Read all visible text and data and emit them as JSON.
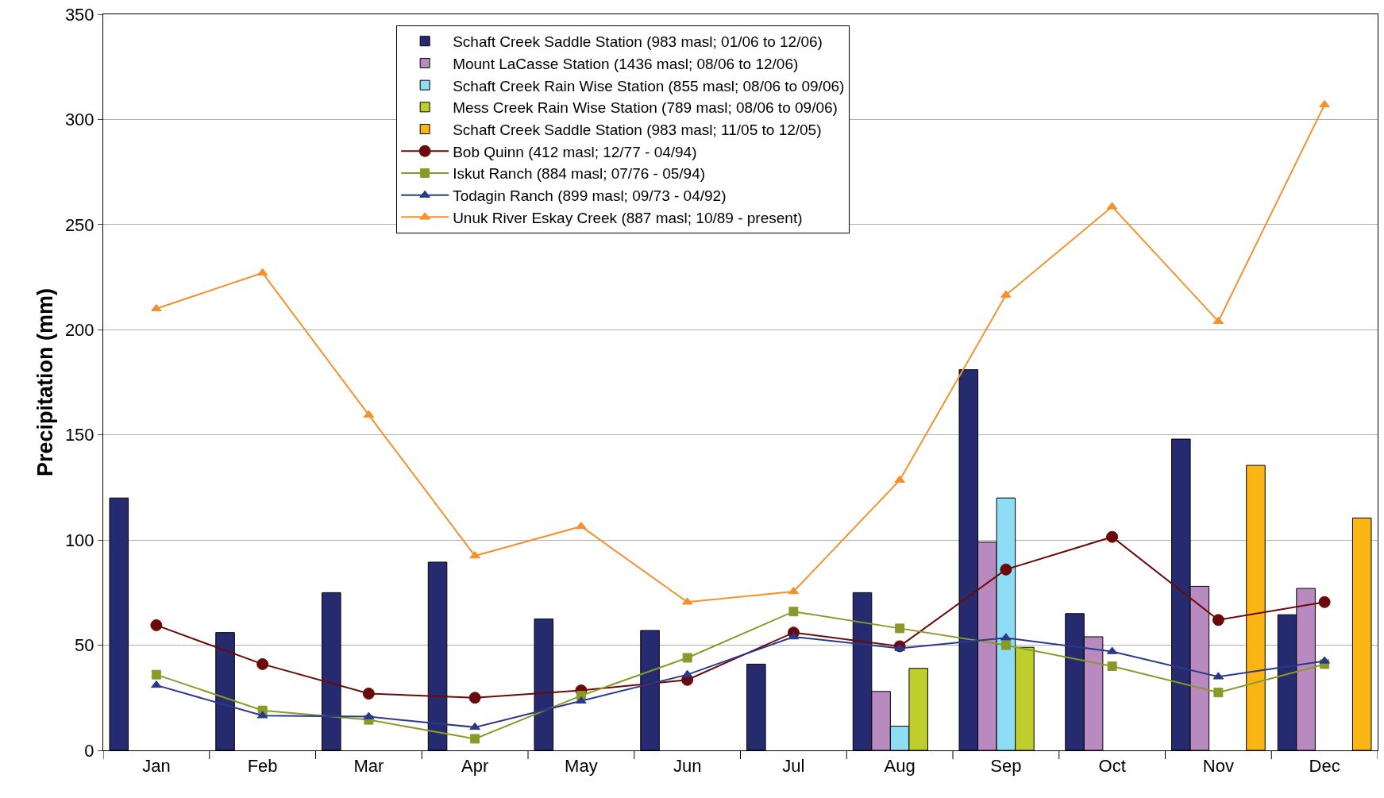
{
  "chart_data": {
    "type": "bar",
    "ylabel": "Precipitation (mm)",
    "categories": [
      "Jan",
      "Feb",
      "Mar",
      "Apr",
      "May",
      "Jun",
      "Jul",
      "Aug",
      "Sep",
      "Oct",
      "Nov",
      "Dec"
    ],
    "ylim": [
      0,
      350
    ],
    "yticks": [
      0,
      50,
      100,
      150,
      200,
      250,
      300,
      350
    ],
    "grid": "y",
    "legend": "top",
    "series": [
      {
        "name": "Schaft Creek Saddle Station (983 masl; 01/06 to 12/06)",
        "color": "#262a6e",
        "values": [
          120,
          56,
          75,
          89.5,
          62.5,
          57,
          41,
          75,
          181,
          65,
          148,
          64.5
        ]
      },
      {
        "name": "Mount LaCasse Station (1436 masl; 08/06 to 12/06)",
        "color": "#b88ac0",
        "values": [
          null,
          null,
          null,
          null,
          null,
          null,
          null,
          28,
          99,
          54,
          78,
          77
        ]
      },
      {
        "name": "Schaft Creek Rain Wise Station (855 masl; 08/06 to 09/06)",
        "color": "#8fdcf5",
        "values": [
          null,
          null,
          null,
          null,
          null,
          null,
          null,
          11.5,
          120,
          null,
          null,
          null
        ]
      },
      {
        "name": "Mess Creek Rain Wise Station (789 masl; 08/06 to 09/06)",
        "color": "#bfce2c",
        "values": [
          null,
          null,
          null,
          null,
          null,
          null,
          null,
          39,
          49,
          null,
          null,
          null
        ]
      },
      {
        "name": "Schaft Creek Saddle Station (983 masl; 11/05 to 12/05)",
        "color": "#fbb616",
        "values": [
          null,
          null,
          null,
          null,
          null,
          null,
          null,
          null,
          null,
          null,
          135.5,
          110.5
        ]
      },
      {
        "name": "Bob Quinn (412 masl; 12/77 - 04/94)",
        "type": "line",
        "marker": "circle",
        "color": "#6b0a0a",
        "values": [
          59.5,
          41,
          27,
          25,
          28.5,
          33.5,
          56,
          49.5,
          86,
          101.5,
          62,
          70.5
        ]
      },
      {
        "name": "Iskut Ranch (884 masl; 07/76 - 05/94)",
        "type": "line",
        "marker": "square",
        "color": "#8a9a2a",
        "values": [
          36,
          19,
          14.5,
          5.5,
          26,
          44,
          66,
          58,
          50,
          40,
          27.5,
          41
        ]
      },
      {
        "name": "Todagin Ranch (899 masl; 09/73 - 04/92)",
        "type": "line",
        "marker": "triangle",
        "color": "#2a3a8a",
        "values": [
          31,
          16.5,
          16,
          11,
          23.5,
          36,
          54,
          48.5,
          53.5,
          47,
          35,
          42.5
        ]
      },
      {
        "name": "Unuk River Eskay Creek (887 masl; 10/89 - present)",
        "type": "line",
        "marker": "triangle",
        "color": "#f5902e",
        "values": [
          210,
          227,
          159.5,
          92.5,
          106.5,
          70.5,
          75.5,
          128.5,
          216.5,
          258.5,
          204,
          307
        ]
      }
    ]
  }
}
